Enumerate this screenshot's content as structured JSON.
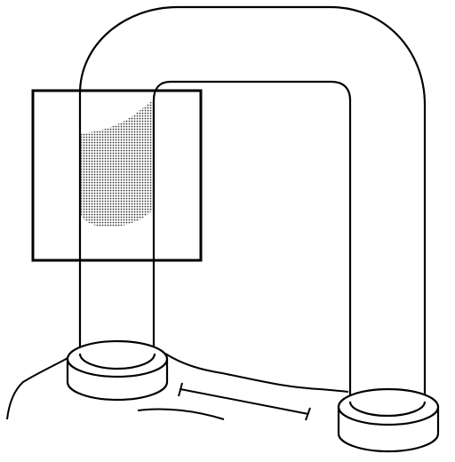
{
  "figure": {
    "colors": {
      "stroke": "#000000",
      "fill": "#ffffff",
      "shade": "#333333"
    },
    "parts": [
      "u-shaped-pipe",
      "left-socket",
      "right-socket",
      "base-surface",
      "highlight-rectangle",
      "shaded-region",
      "dimension-arrow"
    ]
  }
}
